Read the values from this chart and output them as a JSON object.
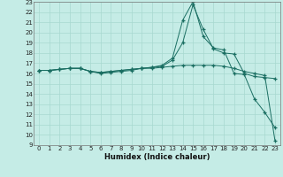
{
  "xlabel": "Humidex (Indice chaleur)",
  "background_color": "#c5ece6",
  "grid_color": "#a8d8d0",
  "line_color": "#1a6e62",
  "x": [
    0,
    1,
    2,
    3,
    4,
    5,
    6,
    7,
    8,
    9,
    10,
    11,
    12,
    13,
    14,
    15,
    16,
    17,
    18,
    19,
    20,
    21,
    22,
    23
  ],
  "line1": [
    16.3,
    16.3,
    16.4,
    16.5,
    16.5,
    16.2,
    16.0,
    16.1,
    16.2,
    16.3,
    16.5,
    16.6,
    16.8,
    17.5,
    21.2,
    23.0,
    19.6,
    18.5,
    18.3,
    16.0,
    15.9,
    13.5,
    12.2,
    10.7
  ],
  "line2": [
    16.3,
    16.3,
    16.4,
    16.5,
    16.5,
    16.2,
    16.1,
    16.2,
    16.3,
    16.4,
    16.5,
    16.6,
    16.7,
    17.3,
    19.0,
    22.7,
    20.3,
    18.4,
    18.0,
    17.9,
    16.0,
    15.7,
    15.6,
    15.5
  ],
  "line3": [
    16.3,
    16.3,
    16.4,
    16.5,
    16.5,
    16.2,
    16.1,
    16.2,
    16.3,
    16.4,
    16.5,
    16.5,
    16.6,
    16.7,
    16.8,
    16.8,
    16.8,
    16.8,
    16.7,
    16.5,
    16.2,
    16.0,
    15.8,
    9.4
  ],
  "ylim_min": 9,
  "ylim_max": 23,
  "xlim_min": 0,
  "xlim_max": 23,
  "yticks": [
    9,
    10,
    11,
    12,
    13,
    14,
    15,
    16,
    17,
    18,
    19,
    20,
    21,
    22,
    23
  ],
  "xticks": [
    0,
    1,
    2,
    3,
    4,
    5,
    6,
    7,
    8,
    9,
    10,
    11,
    12,
    13,
    14,
    15,
    16,
    17,
    18,
    19,
    20,
    21,
    22,
    23
  ],
  "tick_fontsize": 5,
  "xlabel_fontsize": 6
}
